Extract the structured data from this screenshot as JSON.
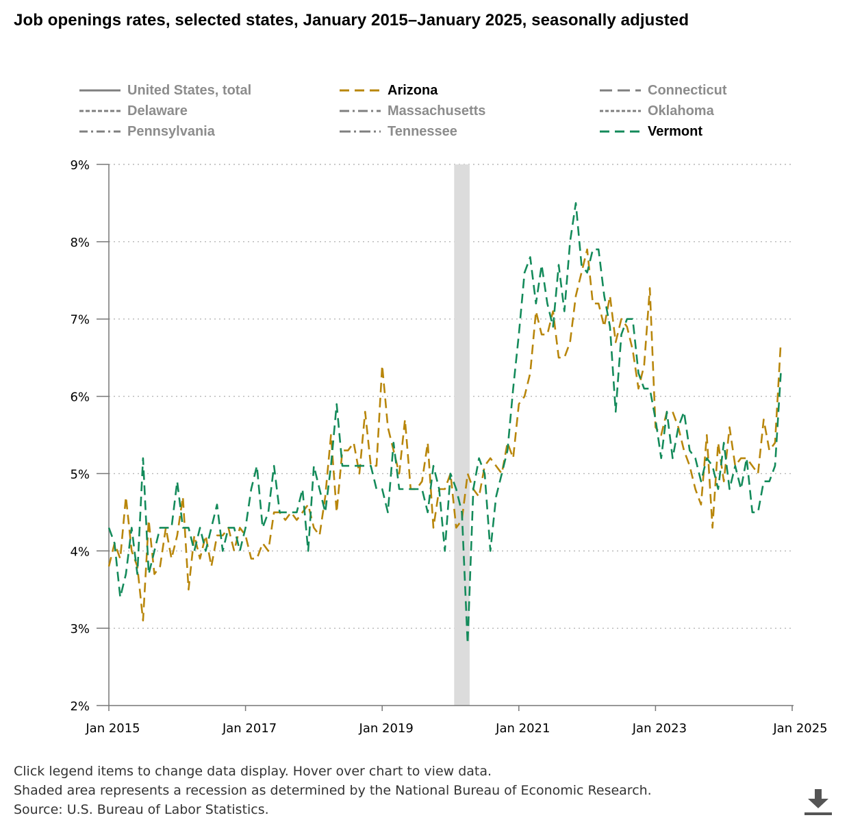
{
  "title": "Job openings rates, selected states, January 2015–January 2025, seasonally adjusted",
  "legend": [
    {
      "label": "United States, total",
      "color": "#7f7f7f",
      "dash": "none",
      "active": false
    },
    {
      "label": "Arizona",
      "color": "#b8860b",
      "dash": "14,8",
      "active": true
    },
    {
      "label": "Connecticut",
      "color": "#7f7f7f",
      "dash": "18,8",
      "active": false
    },
    {
      "label": "Delaware",
      "color": "#7f7f7f",
      "dash": "6,3",
      "active": false
    },
    {
      "label": "Massachusetts",
      "color": "#7f7f7f",
      "dash": "14,5,3,5",
      "active": false
    },
    {
      "label": "Oklahoma",
      "color": "#7f7f7f",
      "dash": "5,3",
      "active": false
    },
    {
      "label": "Pennsylvania",
      "color": "#7f7f7f",
      "dash": "12,5,3,5",
      "active": false
    },
    {
      "label": "Tennessee",
      "color": "#7f7f7f",
      "dash": "16,5,3,5",
      "active": false
    },
    {
      "label": "Vermont",
      "color": "#138a5a",
      "dash": "14,8",
      "active": true
    }
  ],
  "footer": {
    "line1": "Click legend items to change data display. Hover over chart to view data.",
    "line2": "Shaded area represents a recession as determined by the National Bureau of Economic Research.",
    "line3": "Source: U.S. Bureau of Labor Statistics."
  },
  "download_icon": "download-icon",
  "chart_data": {
    "type": "line",
    "title": "Job openings rates, selected states, January 2015–January 2025, seasonally adjusted",
    "xlabel": "",
    "ylabel": "",
    "x_start": "Jan 2015",
    "x_end": "Jan 2025",
    "x_ticks": [
      "Jan 2015",
      "Jan 2017",
      "Jan 2019",
      "Jan 2021",
      "Jan 2023",
      "Jan 2025"
    ],
    "y_ticks": [
      "2%",
      "3%",
      "4%",
      "5%",
      "6%",
      "7%",
      "8%",
      "9%"
    ],
    "ylim": [
      2,
      9
    ],
    "grid": true,
    "recession": {
      "start": "Feb 2020",
      "end": "Apr 2020"
    },
    "series": [
      {
        "name": "Arizona",
        "color": "#b8860b",
        "values": [
          3.8,
          4.1,
          3.9,
          4.7,
          4.0,
          3.8,
          3.1,
          4.4,
          3.7,
          3.8,
          4.3,
          3.9,
          4.2,
          4.7,
          3.5,
          4.2,
          3.9,
          4.2,
          3.8,
          4.2,
          4.2,
          4.3,
          4.0,
          4.3,
          4.2,
          3.9,
          3.9,
          4.1,
          4.0,
          4.5,
          4.5,
          4.4,
          4.5,
          4.4,
          4.5,
          4.6,
          4.3,
          4.2,
          4.7,
          5.5,
          4.5,
          5.3,
          5.3,
          5.4,
          5.0,
          5.8,
          5.1,
          5.1,
          6.4,
          5.6,
          5.3,
          5.0,
          5.7,
          4.8,
          4.8,
          4.9,
          5.4,
          4.3,
          4.8,
          4.8,
          5.0,
          4.3,
          4.4,
          5.0,
          4.8,
          4.7,
          5.1,
          5.2,
          5.1,
          5.0,
          5.4,
          5.2,
          5.9,
          6.0,
          6.3,
          7.1,
          6.8,
          6.8,
          7.1,
          6.5,
          6.5,
          6.7,
          7.3,
          7.6,
          7.9,
          7.2,
          7.2,
          6.9,
          7.3,
          6.7,
          7.0,
          6.9,
          6.6,
          6.1,
          6.4,
          7.4,
          5.6,
          5.5,
          5.8,
          5.8,
          5.6,
          5.3,
          5.1,
          4.8,
          4.6,
          5.5,
          4.3,
          5.4,
          4.9,
          5.6,
          5.1,
          5.2,
          5.2,
          5.1,
          5.0,
          5.7,
          5.3,
          5.4,
          6.7
        ]
      },
      {
        "name": "Vermont",
        "color": "#138a5a",
        "values": [
          4.3,
          4.1,
          3.4,
          3.7,
          4.3,
          3.7,
          5.2,
          3.7,
          4.0,
          4.3,
          4.3,
          4.3,
          4.9,
          4.3,
          4.3,
          4.0,
          4.3,
          4.0,
          4.3,
          4.6,
          4.0,
          4.3,
          4.3,
          4.0,
          4.3,
          4.8,
          5.1,
          4.3,
          4.5,
          5.1,
          4.5,
          4.5,
          4.5,
          4.5,
          4.8,
          4.0,
          5.1,
          4.8,
          4.5,
          5.1,
          5.9,
          5.1,
          5.1,
          5.1,
          5.1,
          5.1,
          5.1,
          4.8,
          4.8,
          4.5,
          5.4,
          4.8,
          4.8,
          4.8,
          4.8,
          4.8,
          4.5,
          5.1,
          4.8,
          4.0,
          5.0,
          4.8,
          4.5,
          2.8,
          4.8,
          5.2,
          5.0,
          4.0,
          4.7,
          5.0,
          5.3,
          6.1,
          6.8,
          7.6,
          7.8,
          7.2,
          7.7,
          7.2,
          6.9,
          7.7,
          7.1,
          8.0,
          8.5,
          7.7,
          7.6,
          7.9,
          7.9,
          7.3,
          6.9,
          5.8,
          6.8,
          7.0,
          7.0,
          6.3,
          6.1,
          6.1,
          5.7,
          5.2,
          5.8,
          5.2,
          5.6,
          5.8,
          5.3,
          5.2,
          4.9,
          5.2,
          5.1,
          4.8,
          5.4,
          4.8,
          5.1,
          4.8,
          5.2,
          4.5,
          4.5,
          4.9,
          4.9,
          5.1,
          6.3
        ]
      }
    ]
  }
}
